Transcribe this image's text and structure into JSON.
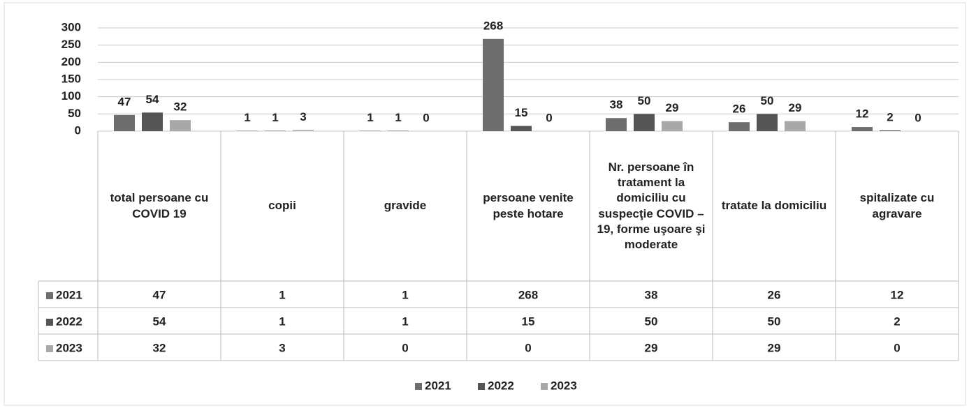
{
  "chart_data": {
    "type": "bar",
    "categories": [
      "total persoane cu COVID 19",
      "copii",
      "gravide",
      "persoane venite peste hotare",
      "Nr. persoane  în tratament la domiciliu cu suspecţie COVID – 19, forme uşoare şi moderate",
      "tratate la domiciliu",
      "spitalizate cu agravare"
    ],
    "series": [
      {
        "name": "2021",
        "color": "#6e6e6e",
        "values": [
          47,
          1,
          1,
          268,
          38,
          26,
          12
        ]
      },
      {
        "name": "2022",
        "color": "#555555",
        "values": [
          54,
          1,
          1,
          15,
          50,
          50,
          2
        ]
      },
      {
        "name": "2023",
        "color": "#a8a8a8",
        "values": [
          32,
          3,
          0,
          0,
          29,
          29,
          0
        ]
      }
    ],
    "ylim": [
      0,
      300
    ],
    "yticks": [
      0,
      50,
      100,
      150,
      200,
      250,
      300
    ],
    "grid": true,
    "legend": "bottom"
  }
}
